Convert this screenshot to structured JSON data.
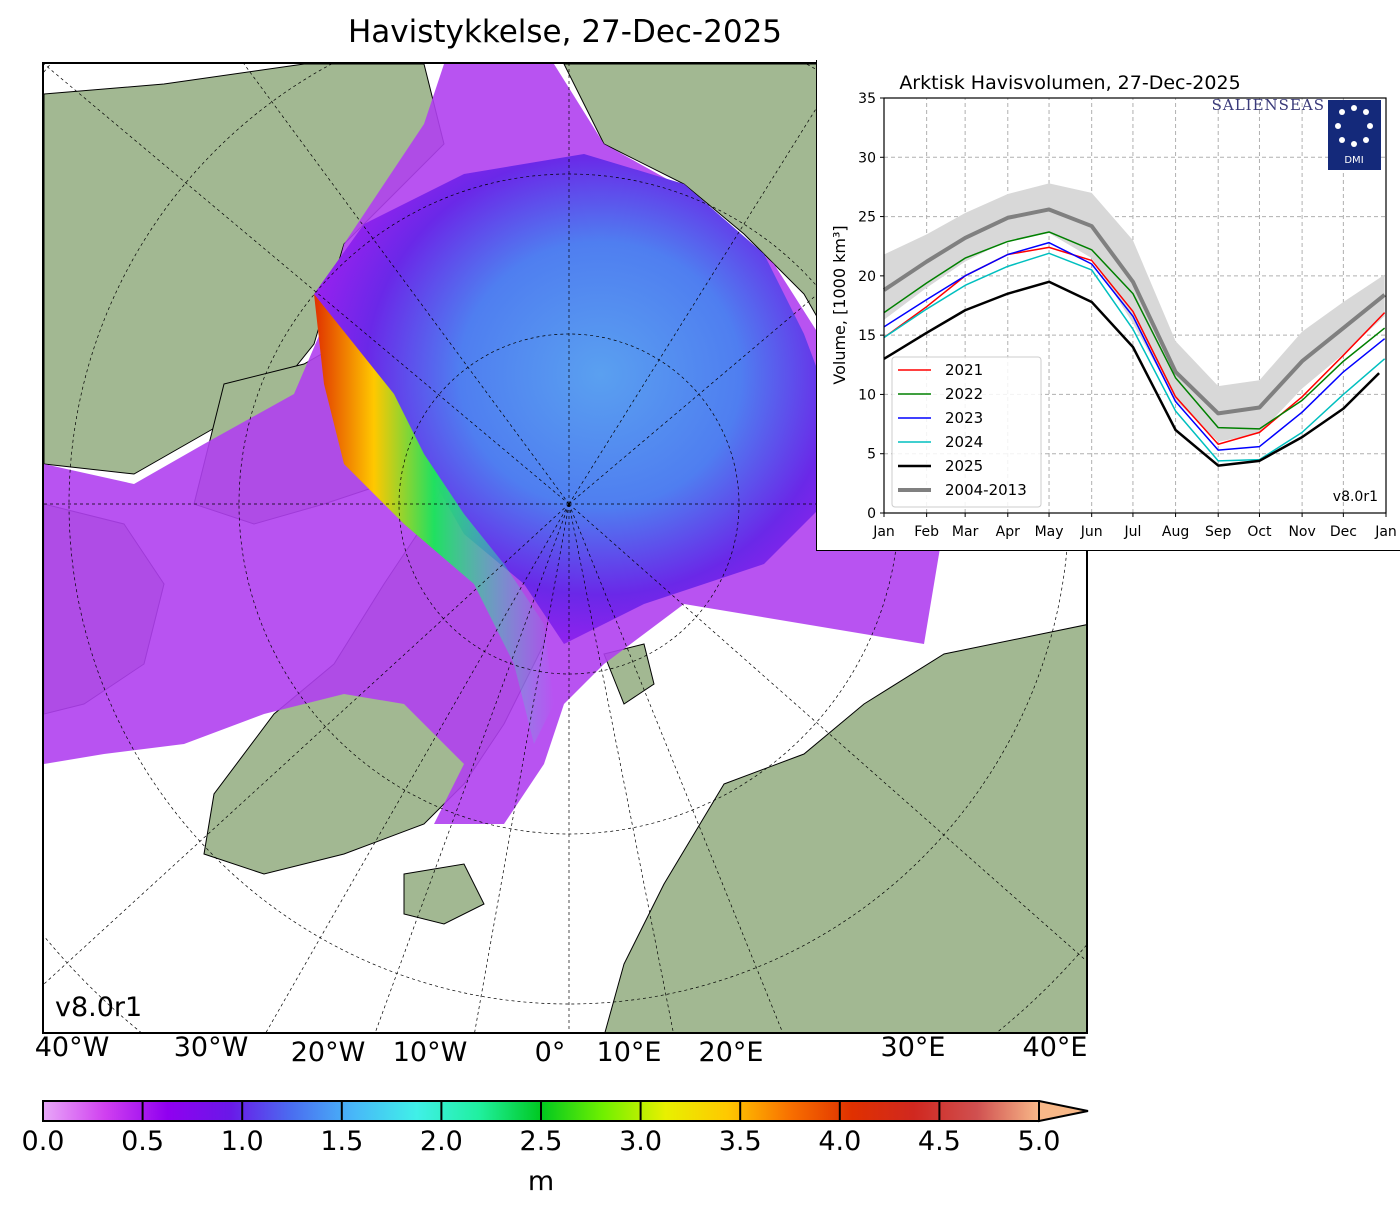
{
  "title": "Havistykkelse, 27-Dec-2025",
  "map": {
    "version_label": "v8.0r1",
    "longitude_labels": [
      "40°W",
      "30°W",
      "20°W",
      "10°W",
      "0°",
      "10°E",
      "20°E",
      "30°E",
      "40°E"
    ],
    "land_color": "#a2b892",
    "ocean_color": "#ffffff",
    "river_color": "#8fb0e8"
  },
  "colorbar": {
    "ticks": [
      "0.0",
      "0.5",
      "1.0",
      "1.5",
      "2.0",
      "2.5",
      "3.0",
      "3.5",
      "4.0",
      "4.5",
      "5.0"
    ],
    "unit": "m",
    "range": [
      0,
      5
    ],
    "extend": "max",
    "colors": [
      "#e8a8f8",
      "#d040f0",
      "#9000f0",
      "#6a18e8",
      "#4a6ef0",
      "#48b8f8",
      "#40f0e8",
      "#20f0a0",
      "#00c820",
      "#70f000",
      "#e8f000",
      "#ffc800",
      "#f87000",
      "#e03000",
      "#d02820",
      "#d05050",
      "#f8b888"
    ]
  },
  "chart_data": {
    "type": "line",
    "title": "Arktisk Havisvolumen, 27-Dec-2025",
    "ylabel": "Volume, [1000 km³]",
    "xlabel": "",
    "ylim": [
      0,
      35
    ],
    "yticks": [
      "0",
      "5",
      "10",
      "15",
      "20",
      "25",
      "30",
      "35"
    ],
    "xticks": [
      "Jan",
      "Feb",
      "Mar",
      "Apr",
      "May",
      "Jun",
      "Jul",
      "Aug",
      "Sep",
      "Oct",
      "Nov",
      "Dec",
      "Jan"
    ],
    "grid": true,
    "legend_position": "lower-left",
    "version_label": "v8.0r1",
    "logos": [
      "SALIENSEAS",
      "DMI"
    ],
    "x": [
      "01-01",
      "02-01",
      "03-01",
      "04-01",
      "05-01",
      "06-01",
      "07-01",
      "08-01",
      "09-01",
      "10-01",
      "11-01",
      "12-01",
      "12-31"
    ],
    "band": {
      "name": "2004-2013 range",
      "color": "#d8d8d8",
      "upper": [
        21.8,
        23.5,
        25.3,
        26.9,
        27.8,
        27.0,
        23.0,
        14.5,
        10.7,
        11.2,
        15.3,
        17.8,
        20.1
      ],
      "lower": [
        16.3,
        19.0,
        21.2,
        23.0,
        23.6,
        21.5,
        16.0,
        9.5,
        6.0,
        6.7,
        10.5,
        13.4,
        16.6
      ]
    },
    "series": [
      {
        "name": "2021",
        "color": "#ff0000",
        "values": [
          14.8,
          17.4,
          20.0,
          21.8,
          22.4,
          21.3,
          17.0,
          9.8,
          5.8,
          6.8,
          9.8,
          13.3,
          16.9
        ]
      },
      {
        "name": "2022",
        "color": "#008000",
        "values": [
          16.9,
          19.4,
          21.5,
          22.9,
          23.7,
          22.2,
          18.5,
          11.4,
          7.2,
          7.1,
          9.5,
          12.8,
          15.6
        ]
      },
      {
        "name": "2023",
        "color": "#0000ff",
        "values": [
          15.7,
          18.0,
          20.0,
          21.8,
          22.8,
          21.0,
          16.6,
          9.4,
          5.3,
          5.6,
          8.5,
          11.9,
          14.7
        ]
      },
      {
        "name": "2024",
        "color": "#00bfbf",
        "values": [
          14.8,
          17.2,
          19.2,
          20.8,
          21.9,
          20.5,
          15.5,
          8.6,
          4.4,
          4.5,
          6.8,
          10.0,
          13.0
        ]
      },
      {
        "name": "2025",
        "color": "#000000",
        "values": [
          13.0,
          15.2,
          17.1,
          18.5,
          19.5,
          17.8,
          14.0,
          7.0,
          4.0,
          4.4,
          6.4,
          8.8,
          null
        ],
        "last_point": {
          "x": "12-27",
          "value": 11.8
        }
      },
      {
        "name": "2004-2013",
        "color": "#808080",
        "values": [
          18.8,
          21.2,
          23.2,
          24.9,
          25.6,
          24.2,
          19.5,
          11.9,
          8.4,
          8.9,
          12.8,
          15.6,
          18.4
        ]
      }
    ]
  }
}
